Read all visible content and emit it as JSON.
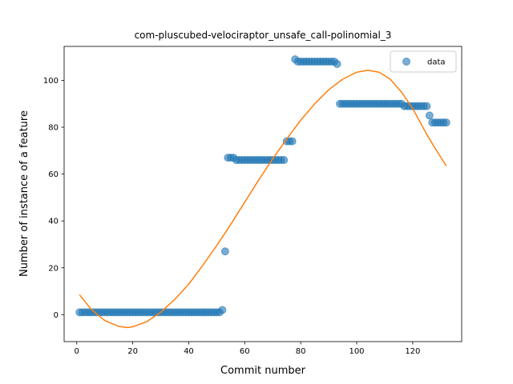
{
  "chart_data": {
    "type": "scatter",
    "title": "com-pluscubed-velociraptor_unsafe_call-polinomial_3",
    "xlabel": "Commit number",
    "ylabel": "Number of instance of a feature",
    "xlim": [
      -4.5,
      137.5
    ],
    "ylim": [
      -11.5,
      114.5
    ],
    "xticks": [
      0,
      20,
      40,
      60,
      80,
      100,
      120
    ],
    "yticks": [
      0,
      20,
      40,
      60,
      80,
      100
    ],
    "grid": false,
    "legend": {
      "placement": "top-right",
      "entries": [
        "data"
      ]
    },
    "series": [
      {
        "name": "data",
        "kind": "scatter",
        "color": "#1f77b4",
        "runs": [
          {
            "x_start": 1,
            "x_end": 51,
            "y": 1
          },
          {
            "x_start": 52,
            "x_end": 52,
            "y": 2
          },
          {
            "x_start": 53,
            "x_end": 53,
            "y": 27
          },
          {
            "x_start": 54,
            "x_end": 56,
            "y": 67
          },
          {
            "x_start": 57,
            "x_end": 74,
            "y": 66
          },
          {
            "x_start": 75,
            "x_end": 77,
            "y": 74
          },
          {
            "x_start": 78,
            "x_end": 78,
            "y": 109
          },
          {
            "x_start": 79,
            "x_end": 92,
            "y": 108
          },
          {
            "x_start": 93,
            "x_end": 93,
            "y": 107
          },
          {
            "x_start": 94,
            "x_end": 116,
            "y": 90
          },
          {
            "x_start": 117,
            "x_end": 125,
            "y": 89
          },
          {
            "x_start": 126,
            "x_end": 126,
            "y": 85
          },
          {
            "x_start": 127,
            "x_end": 132,
            "y": 82
          }
        ]
      },
      {
        "kind": "line",
        "color": "#ff7f0e",
        "fit": "cubic",
        "x": [
          1,
          5,
          10,
          15,
          18,
          20,
          25,
          30,
          35,
          40,
          45,
          50,
          55,
          60,
          65,
          70,
          75,
          80,
          85,
          90,
          95,
          100,
          104,
          108,
          112,
          116,
          120,
          125,
          128,
          132
        ],
        "y": [
          8.5,
          2.5,
          -2.5,
          -5.0,
          -5.5,
          -5.2,
          -3.0,
          1.0,
          6.5,
          13.0,
          21.0,
          29.5,
          38.5,
          48.0,
          57.5,
          66.5,
          75.0,
          83.0,
          90.0,
          96.0,
          100.5,
          103.5,
          104.3,
          103.5,
          100.5,
          95.0,
          88.0,
          77.0,
          71.0,
          63.5
        ]
      }
    ]
  }
}
